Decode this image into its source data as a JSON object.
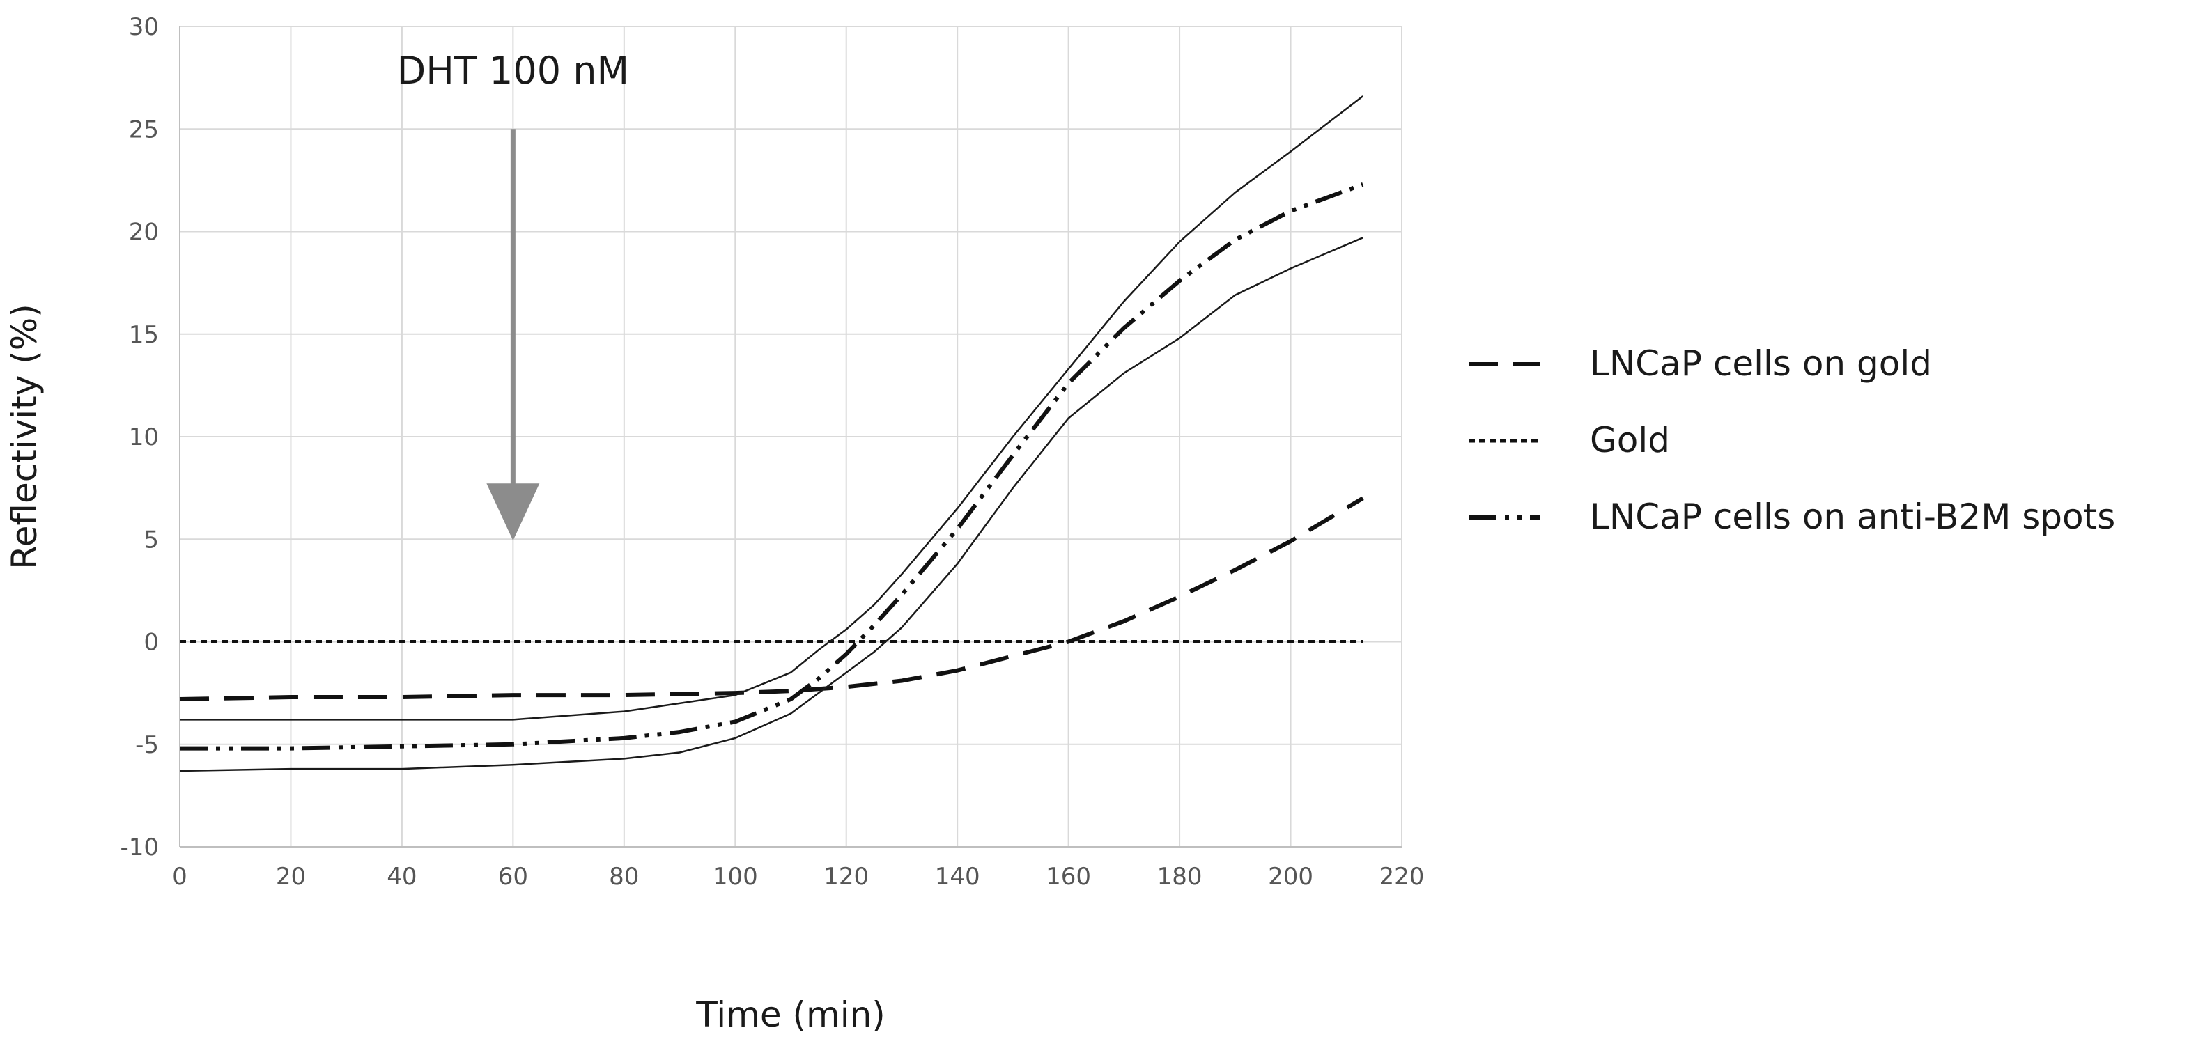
{
  "chart_data": {
    "type": "line",
    "xlabel": "Time (min)",
    "ylabel": "Reflectivity (%)",
    "xlim": [
      0,
      220
    ],
    "ylim": [
      -10,
      30
    ],
    "x_ticks": [
      0,
      20,
      40,
      60,
      80,
      100,
      120,
      140,
      160,
      180,
      200,
      220
    ],
    "y_ticks": [
      -10,
      -5,
      0,
      5,
      10,
      15,
      20,
      25,
      30
    ],
    "grid": true,
    "legend_position": "right",
    "annotation": {
      "text": "DHT 100 nM",
      "x": 60,
      "arrow_from_y": 25,
      "arrow_to_y": 5,
      "color": "#8c8c8c"
    },
    "series": [
      {
        "name": "LNCaP cells on gold",
        "style": "dashed",
        "x": [
          0,
          20,
          40,
          60,
          80,
          100,
          110,
          120,
          130,
          140,
          150,
          160,
          170,
          180,
          190,
          200,
          213
        ],
        "y": [
          -2.8,
          -2.7,
          -2.7,
          -2.6,
          -2.6,
          -2.5,
          -2.4,
          -2.2,
          -1.9,
          -1.4,
          -0.7,
          0.0,
          1.0,
          2.2,
          3.5,
          4.9,
          7.0
        ]
      },
      {
        "name": "Gold",
        "style": "dotted",
        "x": [
          0,
          213
        ],
        "y": [
          0,
          0
        ]
      },
      {
        "name": "LNCaP cells on anti-B2M spots",
        "style": "dash-dot-dot",
        "x": [
          0,
          20,
          40,
          60,
          80,
          90,
          100,
          110,
          115,
          120,
          125,
          130,
          140,
          150,
          160,
          170,
          180,
          190,
          200,
          213
        ],
        "y": [
          -5.2,
          -5.2,
          -5.1,
          -5.0,
          -4.7,
          -4.4,
          -3.9,
          -2.8,
          -1.8,
          -0.6,
          0.8,
          2.3,
          5.5,
          9.1,
          12.6,
          15.3,
          17.6,
          19.6,
          21.0,
          22.3
        ]
      },
      {
        "name": "",
        "style": "thin",
        "x": [
          0,
          20,
          40,
          60,
          80,
          90,
          100,
          110,
          115,
          120,
          125,
          130,
          140,
          150,
          160,
          170,
          180,
          190,
          200,
          213
        ],
        "y": [
          -3.8,
          -3.8,
          -3.8,
          -3.8,
          -3.4,
          -3.0,
          -2.6,
          -1.5,
          -0.4,
          0.6,
          1.8,
          3.3,
          6.5,
          10.0,
          13.3,
          16.6,
          19.5,
          21.9,
          23.9,
          26.6
        ]
      },
      {
        "name": "",
        "style": "thin",
        "x": [
          0,
          20,
          40,
          60,
          80,
          90,
          100,
          110,
          115,
          120,
          125,
          130,
          140,
          150,
          160,
          170,
          180,
          190,
          200,
          213
        ],
        "y": [
          -6.3,
          -6.2,
          -6.2,
          -6.0,
          -5.7,
          -5.4,
          -4.7,
          -3.5,
          -2.5,
          -1.5,
          -0.5,
          0.7,
          3.8,
          7.5,
          10.9,
          13.1,
          14.8,
          16.9,
          18.2,
          19.7
        ]
      }
    ]
  }
}
